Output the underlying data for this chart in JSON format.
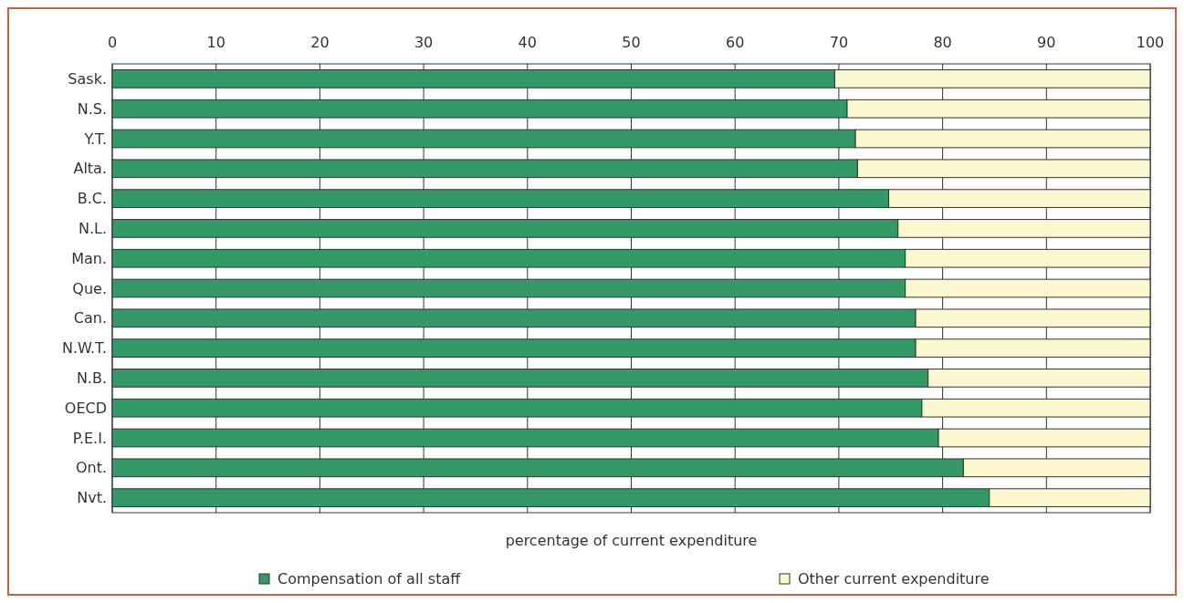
{
  "chart_data": {
    "type": "bar",
    "orientation": "horizontal",
    "stacked": true,
    "xlabel": "percentage of current expenditure",
    "categories": [
      "Sask.",
      "N.S.",
      "Y.T.",
      "Alta.",
      "B.C.",
      "N.L.",
      "Man.",
      "Que.",
      "Can.",
      "N.W.T.",
      "N.B.",
      "OECD",
      "P.E.I.",
      "Ont.",
      "Nvt."
    ],
    "series": [
      {
        "name": "Compensation of all staff",
        "color": "#339966",
        "values": [
          69.6,
          70.8,
          71.6,
          71.8,
          74.8,
          75.7,
          76.4,
          76.4,
          77.4,
          77.4,
          78.6,
          78.0,
          79.6,
          82.0,
          84.5
        ]
      },
      {
        "name": "Other current expenditure",
        "color": "#fbf8cf",
        "values": [
          30.4,
          29.2,
          28.4,
          28.2,
          25.2,
          24.3,
          23.6,
          23.6,
          22.6,
          22.6,
          21.4,
          22.0,
          20.4,
          18.0,
          15.5
        ]
      }
    ],
    "xlim": [
      0,
      100
    ],
    "xticks": [
      0,
      10,
      20,
      30,
      40,
      50,
      60,
      70,
      80,
      90,
      100
    ],
    "grid": "x",
    "legend": "bottom"
  }
}
